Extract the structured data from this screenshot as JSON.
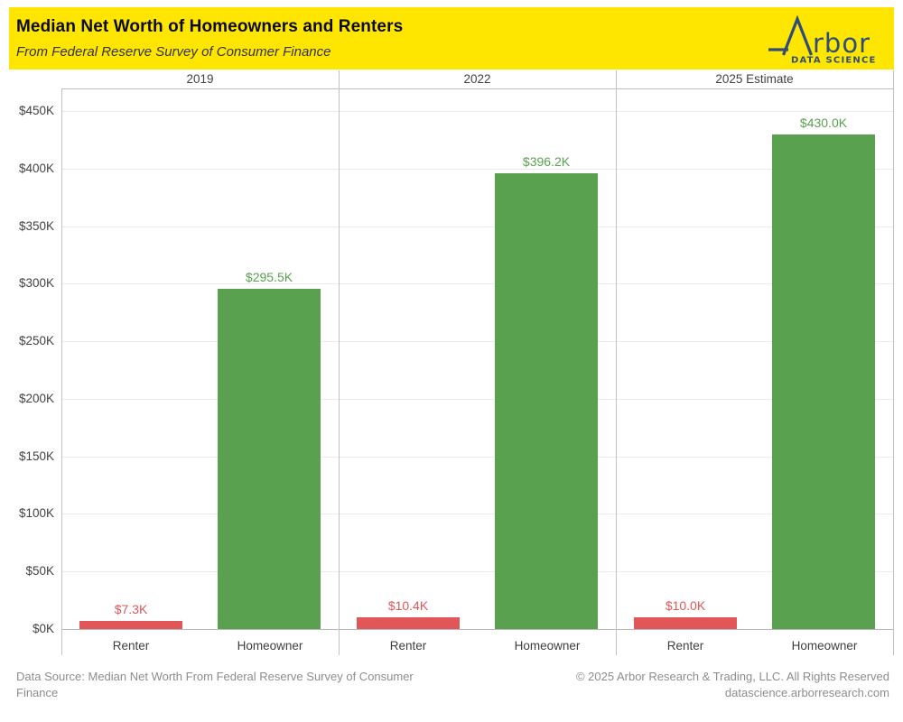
{
  "header": {
    "title": "Median Net Worth of Homeowners and Renters",
    "subtitle": "From Federal Reserve Survey of Consumer Finance",
    "background_color": "#FFE600",
    "logo": {
      "wordmark_tail": "rbor",
      "tagline": "DATA SCIENCE",
      "color": "#2E4D7B"
    }
  },
  "chart_data": {
    "type": "bar",
    "title": "Median Net Worth of Homeowners and Renters",
    "subtitle": "From Federal Reserve Survey of Consumer Finance",
    "unit": "USD thousands",
    "categories": [
      "Renter",
      "Homeowner"
    ],
    "panels": [
      {
        "label": "2019",
        "values": [
          7.3,
          295.5
        ],
        "value_labels": [
          "$7.3K",
          "$295.5K"
        ]
      },
      {
        "label": "2022",
        "values": [
          10.4,
          396.2
        ],
        "value_labels": [
          "$10.4K",
          "$396.2K"
        ]
      },
      {
        "label": "2025 Estimate",
        "values": [
          10.0,
          430.0
        ],
        "value_labels": [
          "$10.0K",
          "$430.0K"
        ]
      }
    ],
    "colors": {
      "Renter": "#E15759",
      "Homeowner": "#59A14F"
    },
    "ylim": [
      0,
      450
    ],
    "ytick_step": 50,
    "yticks": [
      "$0K",
      "$50K",
      "$100K",
      "$150K",
      "$200K",
      "$250K",
      "$300K",
      "$350K",
      "$400K",
      "$450K"
    ],
    "grid": true,
    "legend": "none"
  },
  "footer": {
    "source_line": "Data Source: Median Net Worth From Federal Reserve Survey of Consumer Finance",
    "copyright": "© 2025 Arbor Research & Trading, LLC. All Rights Reserved",
    "website": "datascience.arborresearch.com"
  }
}
